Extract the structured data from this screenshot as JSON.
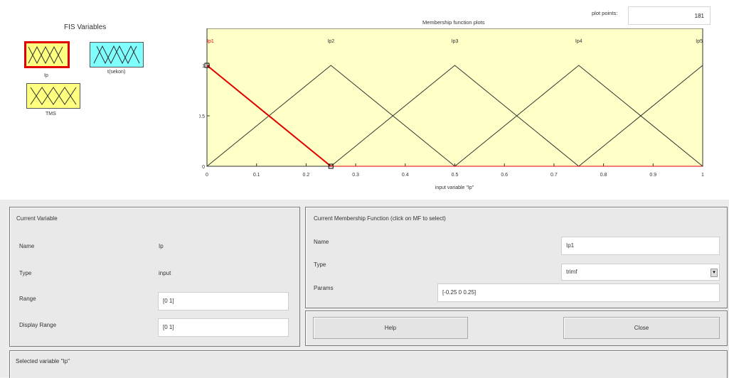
{
  "fis_panel": {
    "title": "FIS Variables",
    "variables": [
      {
        "label": "Ip",
        "color": "#ffff80",
        "selected": true
      },
      {
        "label": "t(sekon)",
        "color": "#80ffff",
        "selected": false
      },
      {
        "label": "TMS",
        "color": "#ffff80",
        "selected": false
      }
    ]
  },
  "plot": {
    "title": "Membership function plots",
    "plot_points_label": "plot points:",
    "plot_points_value": "181",
    "xlabel": "input variable \"Ip\"",
    "mf_labels": [
      "Ip1",
      "Ip2",
      "Ip3",
      "Ip4",
      "Ip5"
    ],
    "x_ticks": [
      "0",
      "0.1",
      "0.2",
      "0.3",
      "0.4",
      "0.5",
      "0.6",
      "0.7",
      "0.8",
      "0.9",
      "1"
    ],
    "y_ticks": [
      "0",
      "0.5",
      "1"
    ],
    "background": "#ffffc8",
    "selected_color": "#e00000"
  },
  "chart_data": {
    "type": "line",
    "title": "Membership function plots",
    "xlabel": "input variable \"Ip\"",
    "ylabel": "",
    "xlim": [
      0,
      1
    ],
    "ylim": [
      0,
      1
    ],
    "series": [
      {
        "name": "Ip1",
        "x": [
          -0.25,
          0,
          0.25
        ],
        "y": [
          0,
          1,
          0
        ],
        "selected": true
      },
      {
        "name": "Ip2",
        "x": [
          0,
          0.25,
          0.5
        ],
        "y": [
          0,
          1,
          0
        ]
      },
      {
        "name": "Ip3",
        "x": [
          0.25,
          0.5,
          0.75
        ],
        "y": [
          0,
          1,
          0
        ]
      },
      {
        "name": "Ip4",
        "x": [
          0.5,
          0.75,
          1
        ],
        "y": [
          0,
          1,
          0
        ]
      },
      {
        "name": "Ip5",
        "x": [
          0.75,
          1,
          1.25
        ],
        "y": [
          0,
          1,
          0
        ]
      }
    ]
  },
  "current_variable": {
    "heading": "Current Variable",
    "name_label": "Name",
    "name_value": "Ip",
    "type_label": "Type",
    "type_value": "input",
    "range_label": "Range",
    "range_value": "[0 1]",
    "display_range_label": "Display Range",
    "display_range_value": "[0 1]"
  },
  "current_mf": {
    "heading": "Current Membership Function (click on MF to select)",
    "name_label": "Name",
    "name_value": "Ip1",
    "type_label": "Type",
    "type_value": "trimf",
    "params_label": "Params",
    "params_value": "[-0.25 0 0.25]"
  },
  "buttons": {
    "help": "Help",
    "close": "Close"
  },
  "status": "Selected variable \"Ip\""
}
